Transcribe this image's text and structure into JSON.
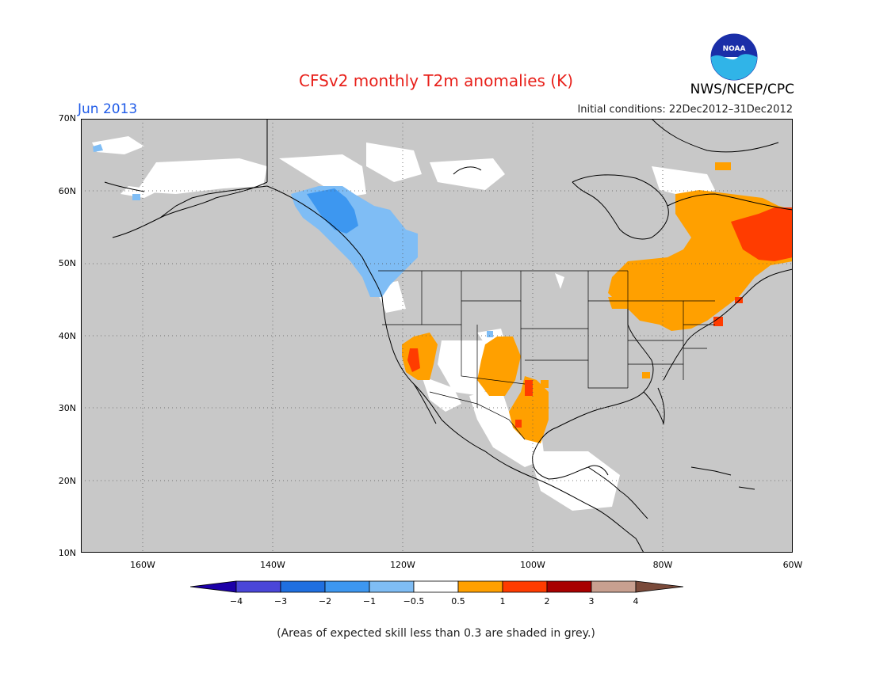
{
  "header": {
    "title": "CFSv2 monthly T2m anomalies (K)",
    "month": "Jun 2013",
    "initial_conditions": "Initial conditions: 22Dec2012–31Dec2012",
    "agency": "NWS/NCEP/CPC",
    "logo_text": "NOAA"
  },
  "axes": {
    "lat_labels": [
      "70N",
      "60N",
      "50N",
      "40N",
      "30N",
      "20N",
      "10N"
    ],
    "lon_labels": [
      "160W",
      "140W",
      "120W",
      "100W",
      "80W",
      "60W"
    ]
  },
  "colorbar": {
    "labels": [
      "−4",
      "−3",
      "−2",
      "−1",
      "−0.5",
      "0.5",
      "1",
      "2",
      "3",
      "4"
    ],
    "colors": [
      "#1c00a8",
      "#4a46d8",
      "#1f6fe0",
      "#3d97f0",
      "#7fbdf5",
      "#ffffff",
      "#ffa000",
      "#ff3c00",
      "#a80000",
      "#c8a090",
      "#7a4a3a"
    ]
  },
  "legend_colors": {
    "grey": "#c8c8c8",
    "light_blue": "#7fbdf5",
    "blue": "#3d97f0",
    "orange": "#ffa000",
    "red_orange": "#ff3c00"
  },
  "footnote": "(Areas of expected skill less than 0.3 are shaded in grey.)"
}
